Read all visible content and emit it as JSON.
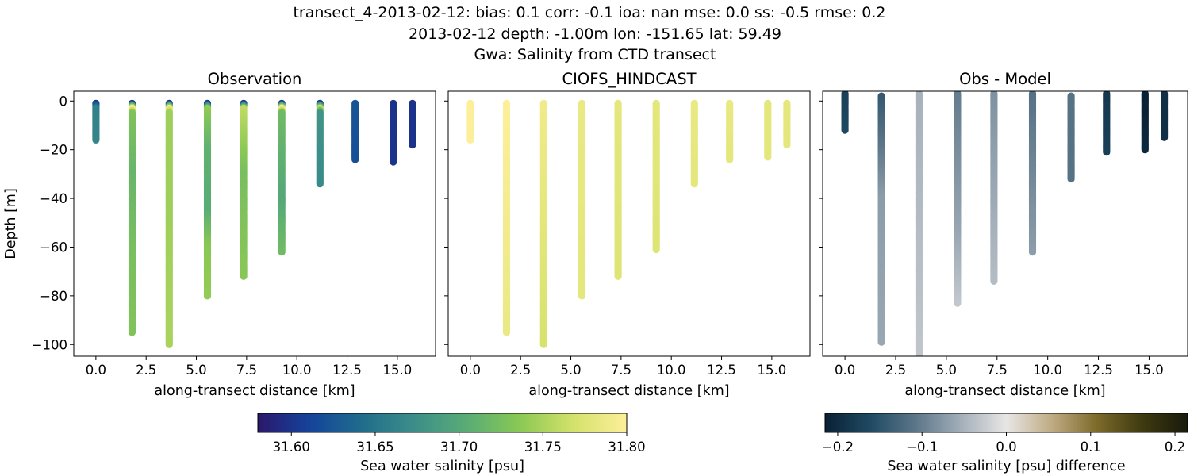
{
  "figure": {
    "suptitle_line1": "transect_4-2013-02-12: bias: 0.1  corr: -0.1  ioa: nan  mse: 0.0  ss: -0.5  rmse: 0.2",
    "suptitle_line2": "2013-02-12 depth: -1.00m lon: -151.65 lat: 59.49",
    "suptitle_line3": "Gwa: Salinity from CTD transect"
  },
  "colors": {
    "haline": [
      "#2a186c",
      "#14439c",
      "#206e8b",
      "#3d8f8a",
      "#5aad74",
      "#8cc954",
      "#d5e26b",
      "#fdef9a"
    ],
    "diff": [
      "#092034",
      "#1f4a63",
      "#5c7689",
      "#a3afba",
      "#e8e6e4",
      "#bfab84",
      "#7c6a2a",
      "#3e3a10",
      "#191a0c"
    ]
  },
  "chart_data": [
    {
      "type": "scatter",
      "title": "Observation",
      "xlabel": "along-transect distance [km]",
      "ylabel": "Depth [m]",
      "xlim": [
        -1.1,
        16.9
      ],
      "ylim": [
        -104.8,
        4.0
      ],
      "xticks": [
        0.0,
        2.5,
        5.0,
        7.5,
        10.0,
        12.5,
        15.0
      ],
      "xtick_labels": [
        "0.0",
        "2.5",
        "5.0",
        "7.5",
        "10.0",
        "12.5",
        "15.0"
      ],
      "yticks": [
        0,
        -20,
        -40,
        -60,
        -80,
        -100
      ],
      "ytick_labels": [
        "0",
        "−20",
        "−40",
        "−60",
        "−80",
        "−100"
      ],
      "colormap": "haline",
      "clim": [
        31.58,
        31.8
      ],
      "casts": [
        {
          "x": 0.0,
          "max_depth": -16,
          "profile": [
            [
              -1,
              31.6
            ],
            [
              -3,
              31.66
            ],
            [
              -16,
              31.665
            ]
          ]
        },
        {
          "x": 1.8,
          "max_depth": -95,
          "profile": [
            [
              -1,
              31.6
            ],
            [
              -3,
              31.8
            ],
            [
              -5,
              31.73
            ],
            [
              -30,
              31.715
            ],
            [
              -60,
              31.725
            ],
            [
              -95,
              31.73
            ]
          ]
        },
        {
          "x": 3.65,
          "max_depth": -100,
          "profile": [
            [
              -1,
              31.6
            ],
            [
              -3,
              31.79
            ],
            [
              -5,
              31.745
            ],
            [
              -50,
              31.745
            ],
            [
              -100,
              31.75
            ]
          ]
        },
        {
          "x": 5.55,
          "max_depth": -80,
          "profile": [
            [
              -1,
              31.6
            ],
            [
              -3,
              31.74
            ],
            [
              -20,
              31.71
            ],
            [
              -45,
              31.705
            ],
            [
              -60,
              31.735
            ],
            [
              -80,
              31.74
            ]
          ]
        },
        {
          "x": 7.35,
          "max_depth": -72,
          "profile": [
            [
              -1,
              31.6
            ],
            [
              -3,
              31.76
            ],
            [
              -30,
              31.725
            ],
            [
              -72,
              31.735
            ]
          ]
        },
        {
          "x": 9.25,
          "max_depth": -62,
          "profile": [
            [
              -1,
              31.6
            ],
            [
              -3,
              31.8
            ],
            [
              -5,
              31.72
            ],
            [
              -40,
              31.7
            ],
            [
              -62,
              31.72
            ]
          ]
        },
        {
          "x": 11.15,
          "max_depth": -34,
          "profile": [
            [
              -1,
              31.6
            ],
            [
              -3,
              31.77
            ],
            [
              -5,
              31.68
            ],
            [
              -34,
              31.67
            ]
          ]
        },
        {
          "x": 12.9,
          "max_depth": -24,
          "profile": [
            [
              -1,
              31.625
            ],
            [
              -24,
              31.62
            ]
          ]
        },
        {
          "x": 14.8,
          "max_depth": -25,
          "profile": [
            [
              -1,
              31.6
            ],
            [
              -25,
              31.6
            ]
          ]
        },
        {
          "x": 15.75,
          "max_depth": -18,
          "profile": [
            [
              -1,
              31.6
            ],
            [
              -18,
              31.6
            ]
          ]
        }
      ]
    },
    {
      "type": "scatter",
      "title": "CIOFS_HINDCAST",
      "xlabel": "along-transect distance [km]",
      "ylabel": "",
      "xlim": [
        -1.1,
        16.9
      ],
      "ylim": [
        -104.8,
        4.0
      ],
      "xticks": [
        0.0,
        2.5,
        5.0,
        7.5,
        10.0,
        12.5,
        15.0
      ],
      "xtick_labels": [
        "0.0",
        "2.5",
        "5.0",
        "7.5",
        "10.0",
        "12.5",
        "15.0"
      ],
      "yticks": [
        0,
        -20,
        -40,
        -60,
        -80,
        -100
      ],
      "colormap": "haline",
      "clim": [
        31.58,
        31.8
      ],
      "casts": [
        {
          "x": 0.0,
          "max_depth": -16,
          "profile": [
            [
              -1,
              31.8
            ],
            [
              -16,
              31.8
            ]
          ]
        },
        {
          "x": 1.8,
          "max_depth": -95,
          "profile": [
            [
              -1,
              31.8
            ],
            [
              -95,
              31.785
            ]
          ]
        },
        {
          "x": 3.65,
          "max_depth": -100,
          "profile": [
            [
              -1,
              31.79
            ],
            [
              -100,
              31.77
            ]
          ]
        },
        {
          "x": 5.55,
          "max_depth": -80,
          "profile": [
            [
              -1,
              31.785
            ],
            [
              -80,
              31.78
            ]
          ]
        },
        {
          "x": 7.35,
          "max_depth": -72,
          "profile": [
            [
              -1,
              31.78
            ],
            [
              -72,
              31.775
            ]
          ]
        },
        {
          "x": 9.25,
          "max_depth": -61,
          "profile": [
            [
              -1,
              31.78
            ],
            [
              -61,
              31.775
            ]
          ]
        },
        {
          "x": 11.15,
          "max_depth": -34,
          "profile": [
            [
              -1,
              31.785
            ],
            [
              -34,
              31.78
            ]
          ]
        },
        {
          "x": 12.9,
          "max_depth": -24,
          "profile": [
            [
              -1,
              31.785
            ],
            [
              -24,
              31.78
            ]
          ]
        },
        {
          "x": 14.8,
          "max_depth": -23,
          "profile": [
            [
              -1,
              31.78
            ],
            [
              -23,
              31.78
            ]
          ]
        },
        {
          "x": 15.75,
          "max_depth": -18,
          "profile": [
            [
              -1,
              31.78
            ],
            [
              -18,
              31.78
            ]
          ]
        }
      ]
    },
    {
      "type": "scatter",
      "title": "Obs - Model",
      "xlabel": "along-transect distance [km]",
      "ylabel": "",
      "xlim": [
        -1.1,
        16.9
      ],
      "ylim": [
        -104.8,
        4.0
      ],
      "xticks": [
        0.0,
        2.5,
        5.0,
        7.5,
        10.0,
        12.5,
        15.0
      ],
      "xtick_labels": [
        "0.0",
        "2.5",
        "5.0",
        "7.5",
        "10.0",
        "12.5",
        "15.0"
      ],
      "yticks": [
        0,
        -20,
        -40,
        -60,
        -80,
        -100
      ],
      "colormap": "diff",
      "clim": [
        -0.21,
        0.21
      ],
      "casts": [
        {
          "x": 0.0,
          "max_depth": -12,
          "profile": [
            [
              3,
              -0.17
            ],
            [
              -12,
              -0.16
            ]
          ]
        },
        {
          "x": 1.8,
          "max_depth": -99,
          "profile": [
            [
              2,
              -0.14
            ],
            [
              -40,
              -0.07
            ],
            [
              -99,
              -0.06
            ]
          ]
        },
        {
          "x": 3.65,
          "max_depth": -110,
          "profile": [
            [
              3,
              -0.05
            ],
            [
              -110,
              -0.03
            ]
          ]
        },
        {
          "x": 5.55,
          "max_depth": -83,
          "profile": [
            [
              3,
              -0.1
            ],
            [
              -55,
              -0.06
            ],
            [
              -83,
              -0.03
            ]
          ]
        },
        {
          "x": 7.35,
          "max_depth": -74,
          "profile": [
            [
              3,
              -0.08
            ],
            [
              -74,
              -0.04
            ]
          ]
        },
        {
          "x": 9.25,
          "max_depth": -62,
          "profile": [
            [
              3,
              -0.11
            ],
            [
              -62,
              -0.07
            ]
          ]
        },
        {
          "x": 11.15,
          "max_depth": -32,
          "profile": [
            [
              2,
              -0.11
            ],
            [
              -32,
              -0.11
            ]
          ]
        },
        {
          "x": 12.9,
          "max_depth": -21,
          "profile": [
            [
              3,
              -0.18
            ],
            [
              -21,
              -0.17
            ]
          ]
        },
        {
          "x": 14.8,
          "max_depth": -20,
          "profile": [
            [
              3,
              -0.21
            ],
            [
              -20,
              -0.2
            ]
          ]
        },
        {
          "x": 15.75,
          "max_depth": -15,
          "profile": [
            [
              3,
              -0.19
            ],
            [
              -15,
              -0.19
            ]
          ]
        }
      ]
    }
  ],
  "colorbars": [
    {
      "label": "Sea water salinity [psu]",
      "colormap": "haline",
      "range": [
        31.58,
        31.8
      ],
      "ticks": [
        31.6,
        31.65,
        31.7,
        31.75,
        31.8
      ],
      "tick_labels": [
        "31.60",
        "31.65",
        "31.70",
        "31.75",
        "31.80"
      ]
    },
    {
      "label": "Sea water salinity [psu] difference",
      "colormap": "diff",
      "range": [
        -0.215,
        0.215
      ],
      "ticks": [
        -0.2,
        -0.1,
        0.0,
        0.1,
        0.2
      ],
      "tick_labels": [
        "−0.2",
        "−0.1",
        "0.0",
        "0.1",
        "0.2"
      ]
    }
  ]
}
